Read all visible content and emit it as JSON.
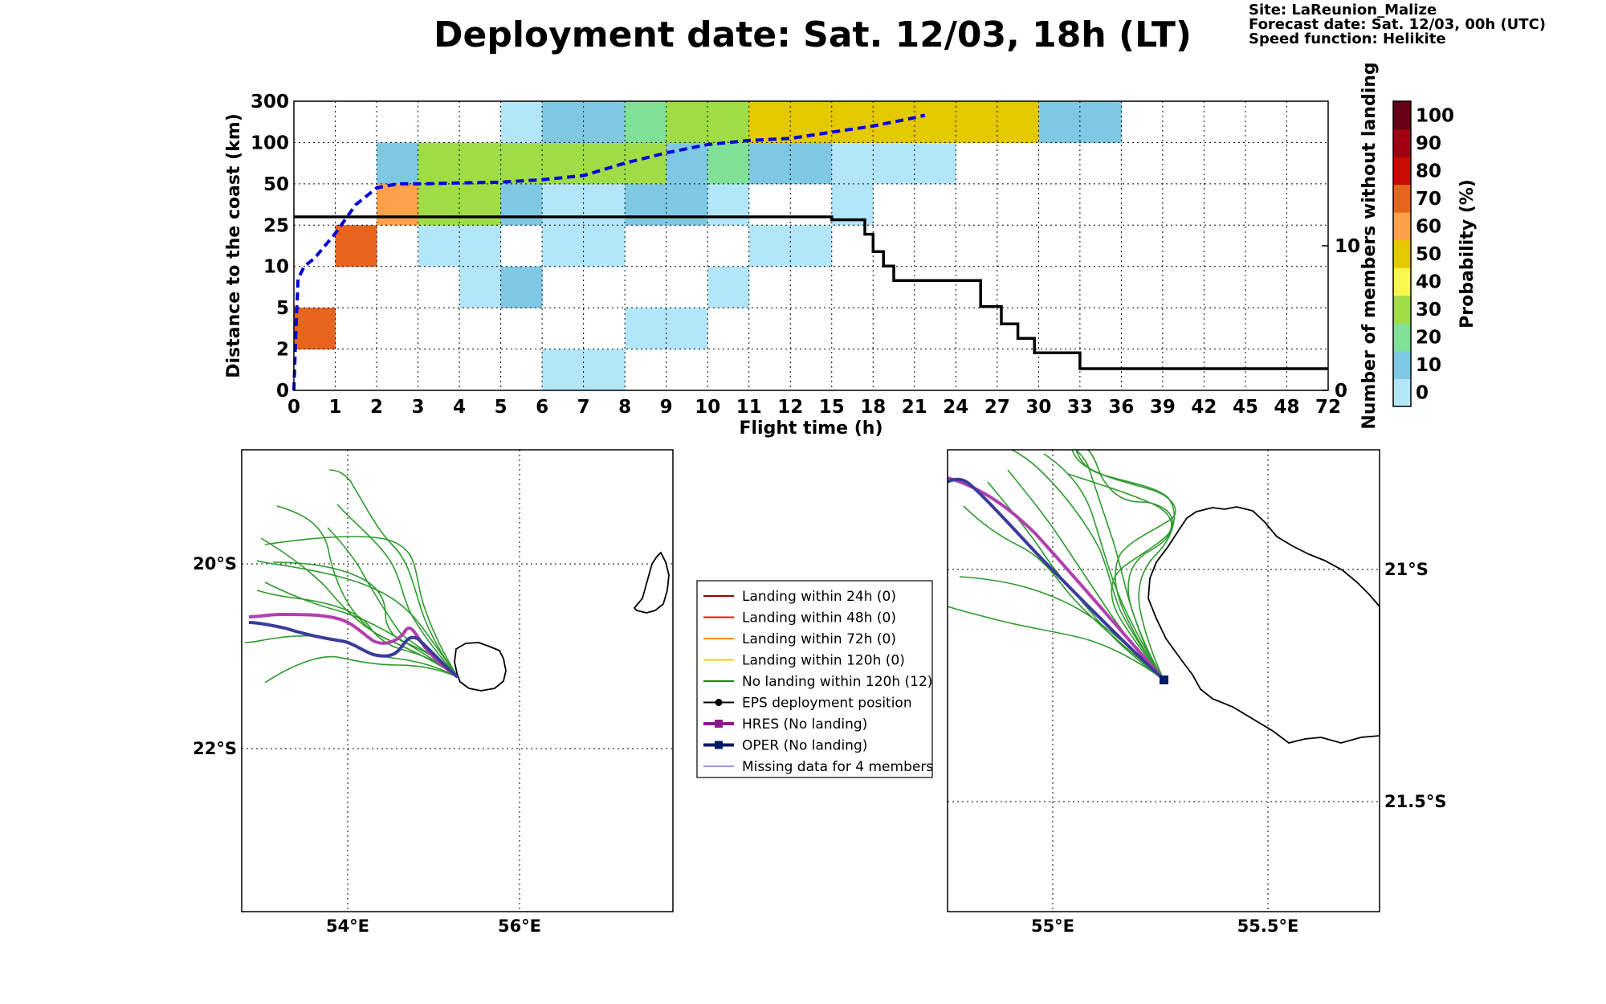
{
  "page": {
    "title": "Deployment date: Sat. 12/03, 18h (LT)",
    "info": {
      "site": "Site: LaReunion_Malize",
      "forecast": "Forecast date: Sat. 12/03, 00h (UTC)",
      "speed": "Speed function: Helikite"
    }
  },
  "chart_data": [
    {
      "type": "heatmap",
      "xlabel": "Flight time (h)",
      "ylabel": "Distance to the coast (km)",
      "y2label": "Number of members without landing",
      "x_ticks": [
        "0",
        "1",
        "2",
        "3",
        "4",
        "5",
        "6",
        "7",
        "8",
        "9",
        "10",
        "11",
        "12",
        "15",
        "18",
        "21",
        "24",
        "27",
        "30",
        "33",
        "36",
        "39",
        "42",
        "45",
        "48",
        "72"
      ],
      "y_ticks": [
        "0",
        "2",
        "5",
        "10",
        "25",
        "50",
        "100",
        "300"
      ],
      "y2_ticks": [
        {
          "value": 0,
          "label": "0"
        },
        {
          "value": 10,
          "label": "10"
        }
      ],
      "y2_range": [
        0,
        20
      ],
      "colorbar": {
        "label": "Probability (%)",
        "ticks": [
          "0",
          "10",
          "20",
          "30",
          "40",
          "50",
          "60",
          "70",
          "80",
          "90",
          "100"
        ],
        "colors": [
          "#b4e6fa",
          "#7fc8e4",
          "#80e096",
          "#9fdc46",
          "#f8f84a",
          "#e4c800",
          "#ffa04b",
          "#e6641e",
          "#c80a00",
          "#a0000f",
          "#640014"
        ]
      },
      "cells": [
        {
          "x": 0,
          "y": 1,
          "p": 70
        },
        {
          "x": 1,
          "y": 3,
          "p": 70
        },
        {
          "x": 2,
          "y": 4,
          "p": 60
        },
        {
          "x": 2,
          "y": 5,
          "p": 10
        },
        {
          "x": 3,
          "y": 3,
          "p": 0
        },
        {
          "x": 3,
          "y": 4,
          "p": 30
        },
        {
          "x": 3,
          "y": 5,
          "p": 30
        },
        {
          "x": 4,
          "y": 2,
          "p": 0
        },
        {
          "x": 4,
          "y": 3,
          "p": 0
        },
        {
          "x": 4,
          "y": 4,
          "p": 30
        },
        {
          "x": 4,
          "y": 5,
          "p": 30
        },
        {
          "x": 5,
          "y": 2,
          "p": 10
        },
        {
          "x": 5,
          "y": 4,
          "p": 10
        },
        {
          "x": 5,
          "y": 5,
          "p": 30
        },
        {
          "x": 5,
          "y": 6,
          "p": 0
        },
        {
          "x": 6,
          "y": 0,
          "p": 0
        },
        {
          "x": 6,
          "y": 3,
          "p": 0
        },
        {
          "x": 6,
          "y": 4,
          "p": 0
        },
        {
          "x": 6,
          "y": 5,
          "p": 30
        },
        {
          "x": 6,
          "y": 6,
          "p": 10
        },
        {
          "x": 7,
          "y": 0,
          "p": 0
        },
        {
          "x": 7,
          "y": 3,
          "p": 0
        },
        {
          "x": 7,
          "y": 4,
          "p": 0
        },
        {
          "x": 7,
          "y": 5,
          "p": 30
        },
        {
          "x": 7,
          "y": 6,
          "p": 10
        },
        {
          "x": 8,
          "y": 1,
          "p": 0
        },
        {
          "x": 8,
          "y": 4,
          "p": 10
        },
        {
          "x": 8,
          "y": 5,
          "p": 30
        },
        {
          "x": 8,
          "y": 6,
          "p": 20
        },
        {
          "x": 9,
          "y": 1,
          "p": 0
        },
        {
          "x": 9,
          "y": 4,
          "p": 10
        },
        {
          "x": 9,
          "y": 5,
          "p": 10
        },
        {
          "x": 9,
          "y": 6,
          "p": 30
        },
        {
          "x": 10,
          "y": 2,
          "p": 0
        },
        {
          "x": 10,
          "y": 4,
          "p": 0
        },
        {
          "x": 10,
          "y": 5,
          "p": 20
        },
        {
          "x": 10,
          "y": 6,
          "p": 30
        },
        {
          "x": 11,
          "y": 3,
          "p": 0
        },
        {
          "x": 11,
          "y": 5,
          "p": 10
        },
        {
          "x": 11,
          "y": 6,
          "p": 50
        },
        {
          "x": 12,
          "y": 3,
          "p": 0
        },
        {
          "x": 12,
          "y": 5,
          "p": 10
        },
        {
          "x": 12,
          "y": 6,
          "p": 50
        },
        {
          "x": 13,
          "y": 4,
          "p": 0
        },
        {
          "x": 13,
          "y": 5,
          "p": 0
        },
        {
          "x": 13,
          "y": 6,
          "p": 50
        },
        {
          "x": 14,
          "y": 5,
          "p": 0
        },
        {
          "x": 14,
          "y": 6,
          "p": 50
        },
        {
          "x": 15,
          "y": 5,
          "p": 0
        },
        {
          "x": 15,
          "y": 6,
          "p": 50
        },
        {
          "x": 16,
          "y": 6,
          "p": 50
        },
        {
          "x": 17,
          "y": 6,
          "p": 50
        },
        {
          "x": 18,
          "y": 6,
          "p": 10
        },
        {
          "x": 19,
          "y": 6,
          "p": 10
        }
      ],
      "series": [
        {
          "role": "members-without-landing",
          "color": "#000000",
          "style": "solid",
          "points": [
            [
              0,
              12
            ],
            [
              13,
              12
            ],
            [
              13,
              11.8
            ],
            [
              13.8,
              11.8
            ],
            [
              13.8,
              10.8
            ],
            [
              14,
              10.8
            ],
            [
              14,
              9.6
            ],
            [
              14.25,
              9.6
            ],
            [
              14.25,
              8.6
            ],
            [
              14.5,
              8.6
            ],
            [
              14.5,
              7.6
            ],
            [
              16.6,
              7.6
            ],
            [
              16.6,
              5.8
            ],
            [
              17.1,
              5.8
            ],
            [
              17.1,
              4.6
            ],
            [
              17.5,
              4.6
            ],
            [
              17.5,
              3.6
            ],
            [
              17.9,
              3.6
            ],
            [
              17.9,
              2.6
            ],
            [
              19,
              2.6
            ],
            [
              19,
              1.5
            ],
            [
              25,
              1.5
            ]
          ]
        },
        {
          "role": "mean-distance",
          "color": "#0000dd",
          "style": "dashed",
          "points": [
            [
              0,
              0
            ],
            [
              0.05,
              1.5
            ],
            [
              0.1,
              2.7
            ],
            [
              0.25,
              3.0
            ],
            [
              0.5,
              3.2
            ],
            [
              1,
              3.8
            ],
            [
              1.5,
              4.5
            ],
            [
              2,
              4.9
            ],
            [
              2.5,
              5.0
            ],
            [
              3,
              5.0
            ],
            [
              4,
              5.02
            ],
            [
              5,
              5.04
            ],
            [
              6,
              5.1
            ],
            [
              7,
              5.2
            ],
            [
              8,
              5.5
            ],
            [
              9,
              5.75
            ],
            [
              10,
              5.95
            ],
            [
              11,
              6.05
            ],
            [
              12,
              6.1
            ],
            [
              13,
              6.25
            ],
            [
              14,
              6.4
            ],
            [
              15,
              6.6
            ],
            [
              15.25,
              6.66
            ]
          ]
        }
      ]
    },
    {
      "type": "map",
      "name": "left",
      "lat_labels": [
        "20°S",
        "22°S"
      ],
      "lon_labels": [
        "54°E",
        "56°E"
      ]
    },
    {
      "type": "map",
      "name": "right",
      "lat_labels": [
        "21°S",
        "21.5°S"
      ],
      "lon_labels": [
        "55°E",
        "55.5°E"
      ]
    }
  ],
  "legend": [
    {
      "label": "Landing within 24h (0)",
      "color": "#a00000",
      "marker": "none",
      "width": 2
    },
    {
      "label": "Landing within 48h (0)",
      "color": "#ee1010",
      "marker": "none",
      "width": 2
    },
    {
      "label": "Landing within 72h (0)",
      "color": "#ff8c00",
      "marker": "none",
      "width": 2
    },
    {
      "label": "Landing within 120h (0)",
      "color": "#f0d000",
      "marker": "none",
      "width": 2
    },
    {
      "label": "No landing within 120h (12)",
      "color": "#1a8a1a",
      "marker": "none",
      "width": 2
    },
    {
      "label": "EPS deployment position",
      "color": "#000000",
      "marker": "circle",
      "width": 2
    },
    {
      "label": "HRES (No landing)",
      "color": "#8b1a8b",
      "marker": "square",
      "width": 4
    },
    {
      "label": "OPER (No landing)",
      "color": "#001a66",
      "marker": "square",
      "width": 4
    },
    {
      "label": "Missing data for 4 members",
      "color": "#3333ff",
      "marker": "none",
      "width": 1
    }
  ]
}
